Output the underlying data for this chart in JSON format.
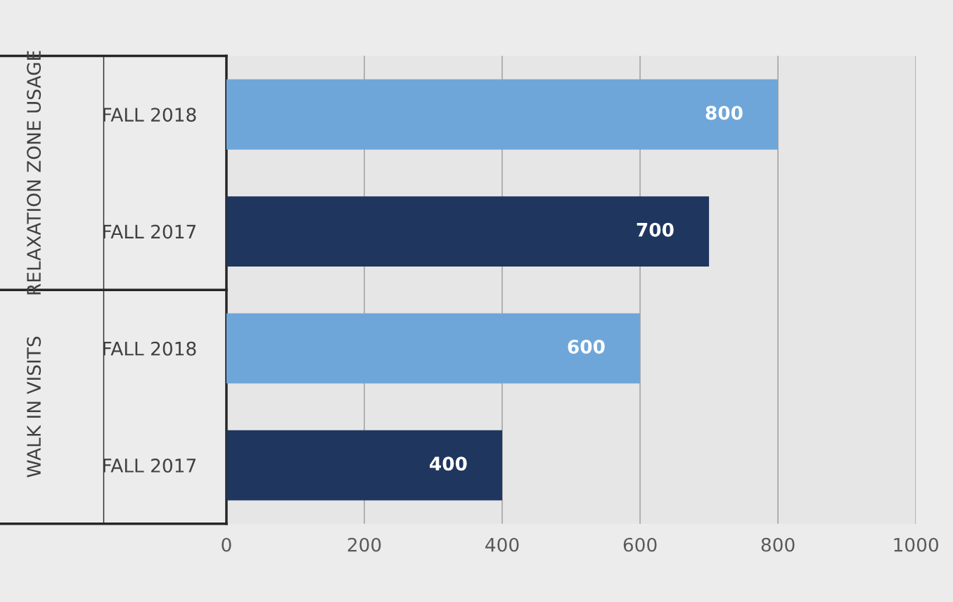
{
  "chart_data": {
    "type": "bar",
    "orientation": "horizontal",
    "categories": [
      "FALL 2018",
      "FALL 2017",
      "FALL 2018",
      "FALL 2017"
    ],
    "values": [
      800,
      700,
      600,
      400
    ],
    "colors": [
      "#6fa6da",
      "#1f365f",
      "#6fa6da",
      "#1f365f"
    ],
    "data_labels": true,
    "xlim": [
      0,
      1000
    ],
    "xticks": [
      0,
      200,
      400,
      600,
      800,
      1000
    ],
    "grid": "x",
    "annotations": [
      "RELAXATION ZONE USAGE",
      "WALK IN VISITS"
    ]
  }
}
